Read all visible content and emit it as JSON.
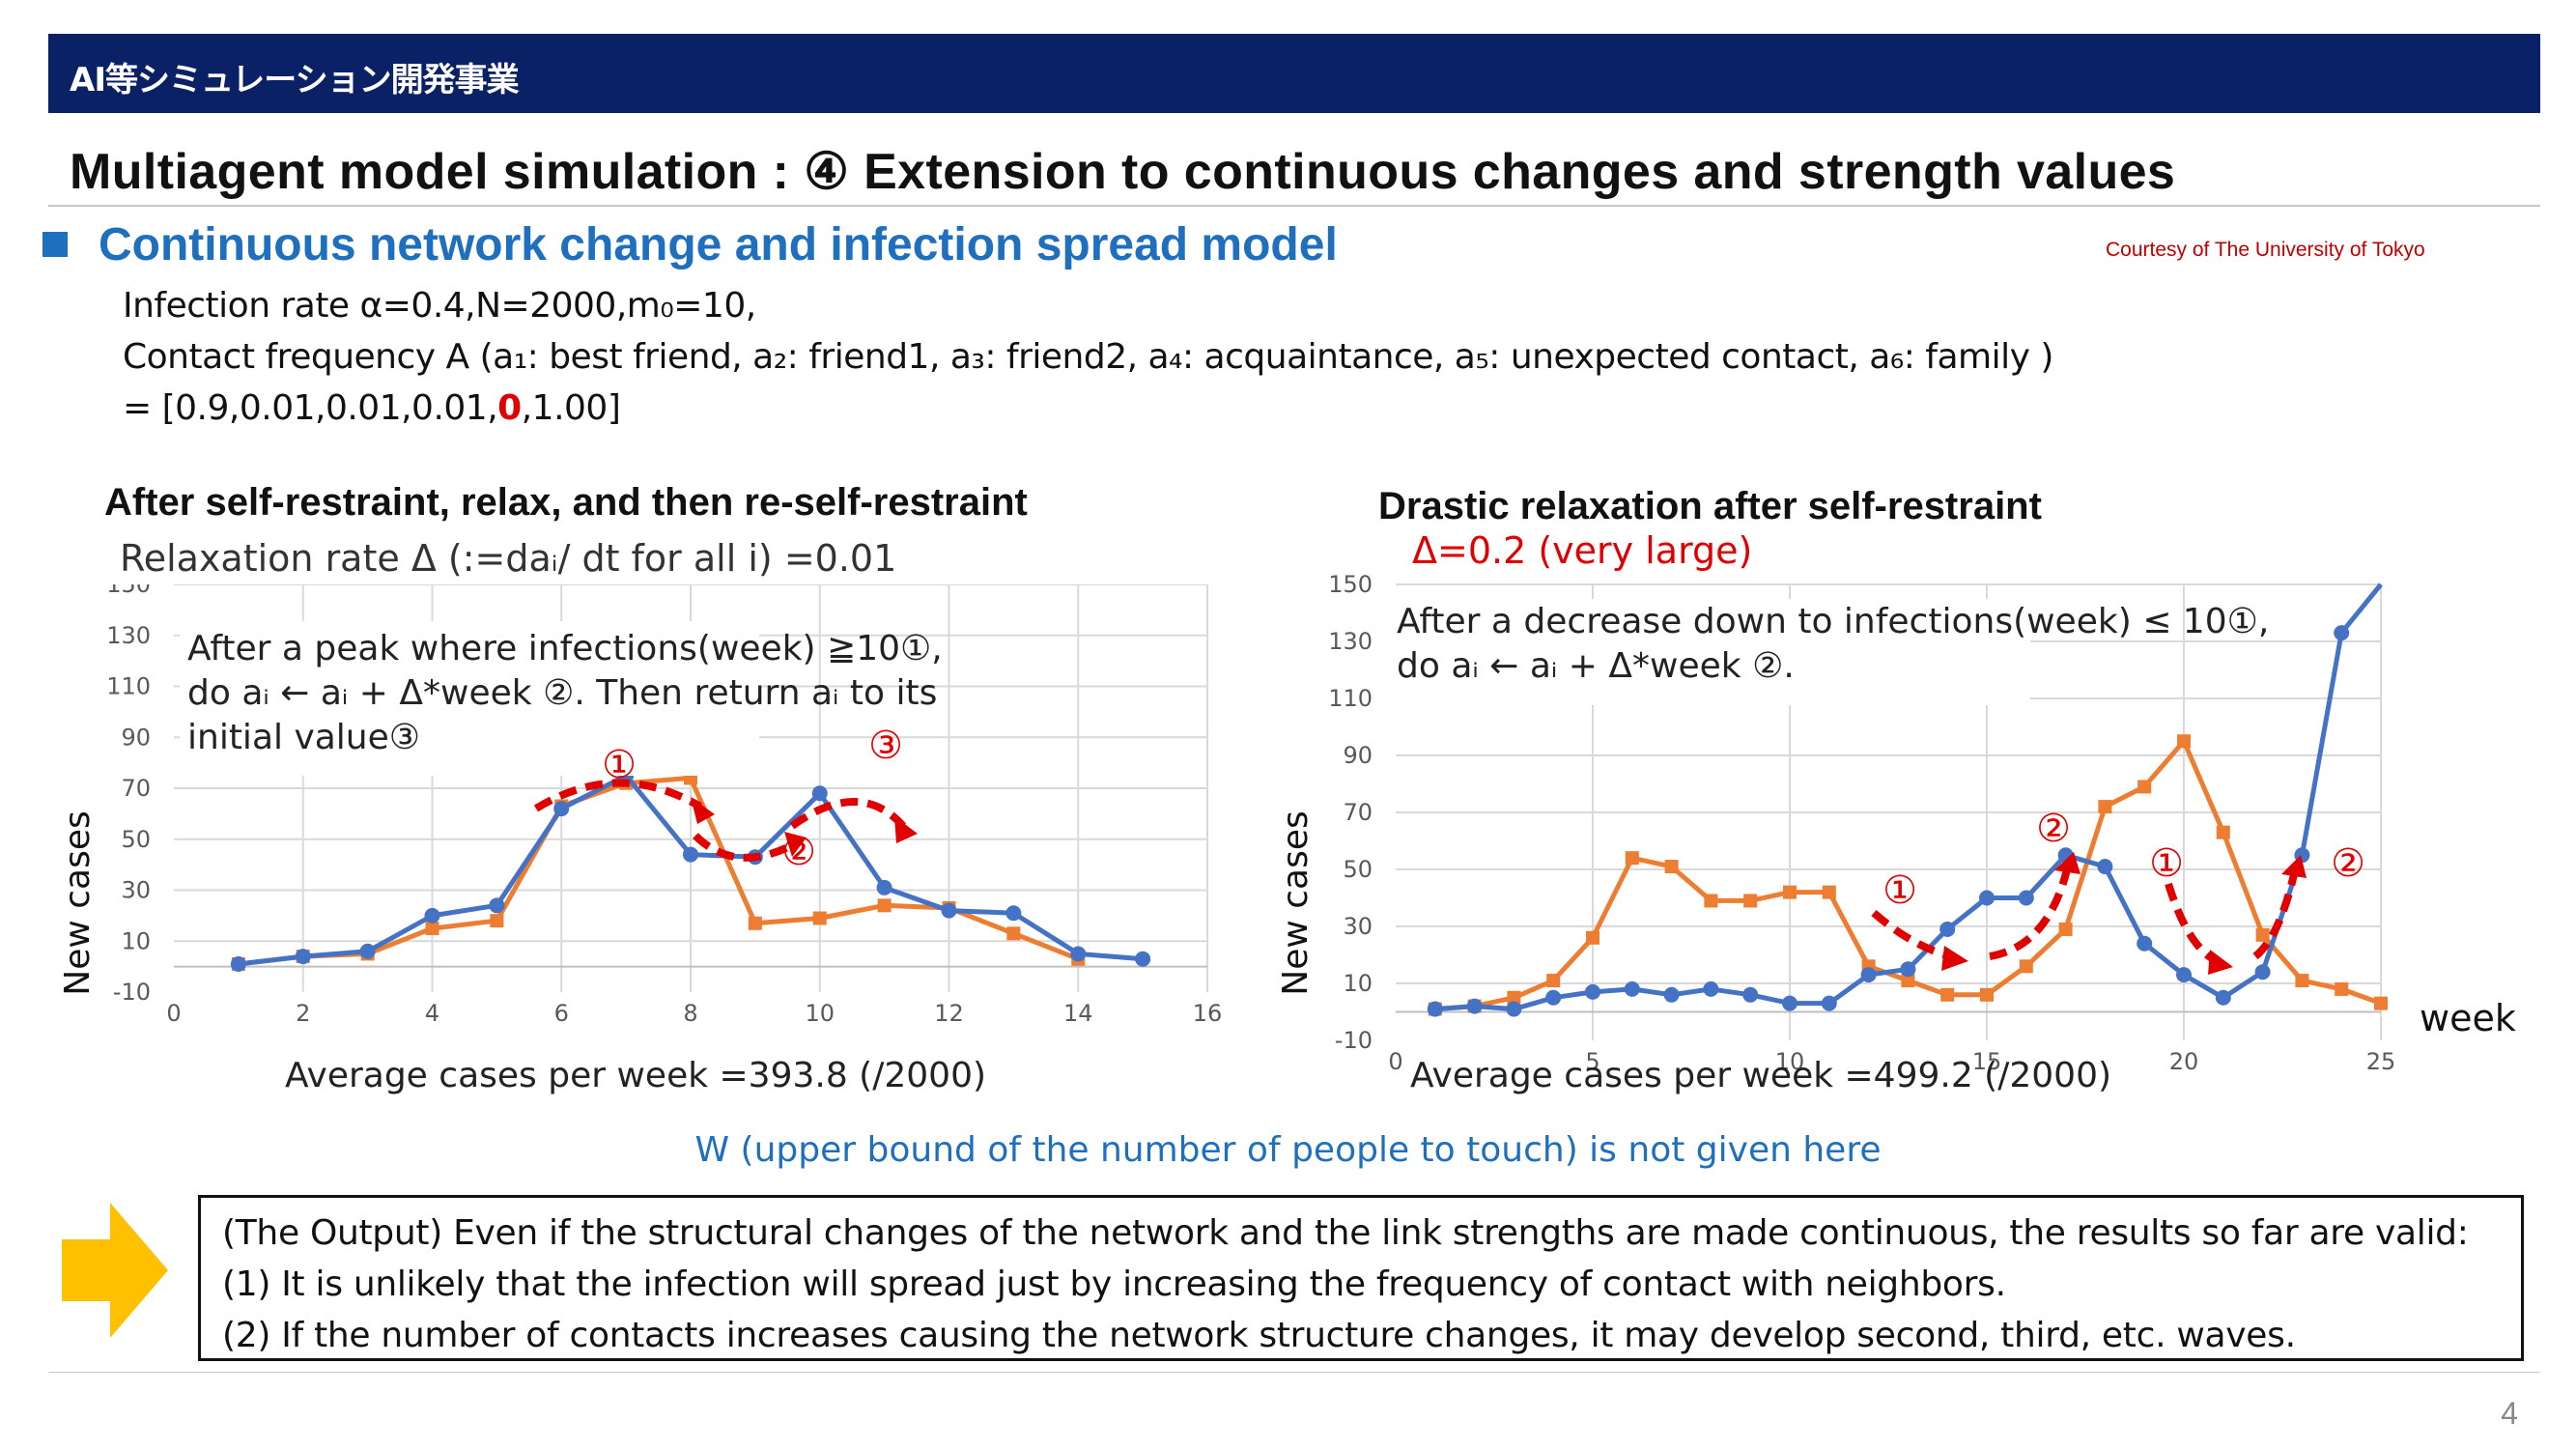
{
  "header": {
    "title": "AI等シミュレーション開発事業"
  },
  "page_title": "Multiagent model simulation : ④ Extension to continuous changes and strength values",
  "section": {
    "title": "Continuous network change and infection spread model",
    "courtesy": "Courtesy of The University of Tokyo"
  },
  "params": {
    "line1": "Infection rate α=0.4,N=2000,m₀=10,",
    "line2": "Contact frequency A (a₁: best friend, a₂: friend1, a₃: friend2, a₄: acquaintance, a₅: unexpected contact, a₆: family )",
    "line3_prefix": "= [0.9,0.01,0.01,0.01,",
    "line3_highlight": "0",
    "line3_suffix": ",1.00]"
  },
  "colors": {
    "header": "#0a2166",
    "accent_blue": "#1f6fbf",
    "series_blue": "#4472c4",
    "series_orange": "#ed7d31",
    "annotation_red": "#e00000",
    "arrow_yellow": "#ffc000"
  },
  "chart_left": {
    "title": "After self-restraint, relax, and then re-self-restraint",
    "subtitle": "Relaxation rate  Δ (:=daᵢ/ dt for all i) =0.01",
    "ylabel": "New cases",
    "footer": "Average cases per week =393.8 (/2000)",
    "annotation_lines": [
      "After a peak where infections(week) ≧10①,",
      "do aᵢ ← aᵢ + Δ*week ②. Then return aᵢ to its",
      "initial value③"
    ],
    "markers": [
      "①",
      "②",
      "③"
    ]
  },
  "chart_right": {
    "title": "Drastic relaxation after self-restraint",
    "subtitle": "Δ=0.2 (very large)",
    "ylabel": "New cases",
    "xlabel": "week",
    "footer": "Average cases per week =499.2 (/2000)",
    "annotation_lines": [
      "After a decrease down to infections(week) ≤ 10①,",
      "do aᵢ ← aᵢ +  Δ*week ②."
    ],
    "markers": [
      "①",
      "②",
      "①",
      "②"
    ]
  },
  "chart_data": [
    {
      "type": "line",
      "title": "After self-restraint, relax, and then re-self-restraint",
      "ylabel": "New cases",
      "xlim": [
        0,
        16
      ],
      "ylim": [
        -10,
        150
      ],
      "xticks": [
        0,
        2,
        4,
        6,
        8,
        10,
        12,
        14,
        16
      ],
      "yticks": [
        -10,
        10,
        30,
        50,
        70,
        90,
        110,
        130,
        150
      ],
      "grid": true,
      "series": [
        {
          "color": "#4472c4",
          "x": [
            1,
            2,
            3,
            4,
            5,
            6,
            7,
            8,
            9,
            10,
            11,
            12,
            13,
            14,
            15
          ],
          "y": [
            1,
            4,
            6,
            20,
            24,
            62,
            75,
            44,
            43,
            68,
            31,
            22,
            21,
            5,
            3
          ]
        },
        {
          "color": "#ed7d31",
          "x": [
            1,
            2,
            3,
            4,
            5,
            6,
            7,
            8,
            9,
            10,
            11,
            12,
            13,
            14
          ],
          "y": [
            1,
            4,
            5,
            15,
            18,
            63,
            72,
            74,
            17,
            19,
            24,
            23,
            13,
            3
          ]
        }
      ]
    },
    {
      "type": "line",
      "title": "Drastic relaxation after self-restraint",
      "ylabel": "New cases",
      "xlabel": "week",
      "xlim": [
        0,
        25
      ],
      "ylim": [
        -10,
        150
      ],
      "xticks": [
        0,
        5,
        10,
        15,
        20,
        25
      ],
      "yticks": [
        -10,
        10,
        30,
        50,
        70,
        90,
        110,
        130,
        150
      ],
      "grid": true,
      "series": [
        {
          "color": "#4472c4",
          "x": [
            1,
            2,
            3,
            4,
            5,
            6,
            7,
            8,
            9,
            10,
            11,
            12,
            13,
            14,
            15,
            16,
            17,
            18,
            19,
            20,
            21,
            22,
            23,
            24,
            25
          ],
          "y": [
            1,
            2,
            1,
            5,
            7,
            8,
            6,
            8,
            6,
            3,
            3,
            13,
            15,
            29,
            40,
            40,
            55,
            51,
            24,
            13,
            5,
            14,
            55,
            133,
            152
          ]
        },
        {
          "color": "#ed7d31",
          "x": [
            1,
            2,
            3,
            4,
            5,
            6,
            7,
            8,
            9,
            10,
            11,
            12,
            13,
            14,
            15,
            16,
            17,
            18,
            19,
            20,
            21,
            22,
            23,
            24,
            25
          ],
          "y": [
            1,
            2,
            5,
            11,
            26,
            54,
            51,
            39,
            39,
            42,
            42,
            16,
            11,
            6,
            6,
            16,
            29,
            72,
            79,
            95,
            63,
            27,
            11,
            8,
            3
          ]
        }
      ]
    }
  ],
  "footer_note": "W  (upper bound of the number of people to touch) is not given here",
  "output": {
    "line1": "(The Output) Even if the structural changes of the network and the link strengths are made continuous, the results so far are valid:",
    "line2": "(1) It is unlikely that the infection will spread just by increasing the frequency of contact with neighbors.",
    "line3": "(2) If the number of contacts increases causing the network structure changes, it may develop second, third, etc. waves."
  },
  "page_number": "4"
}
